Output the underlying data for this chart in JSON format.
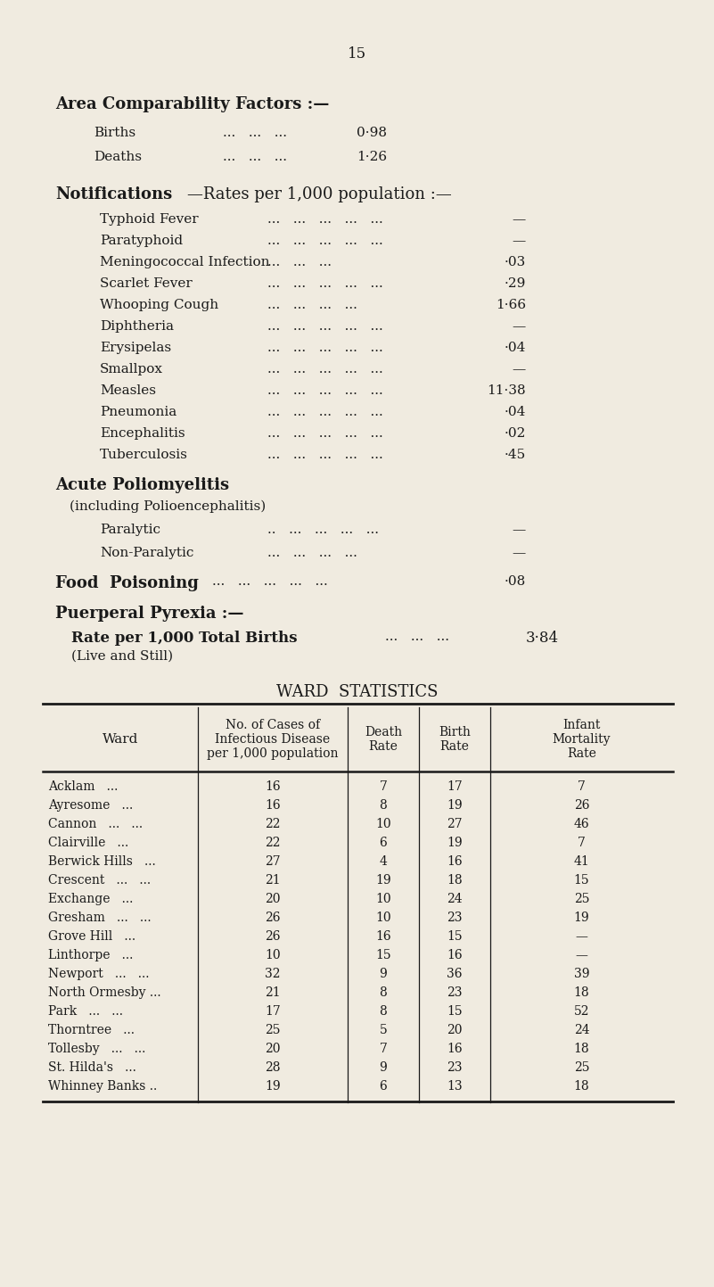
{
  "page_number": "15",
  "background_color": "#f0ebe0",
  "text_color": "#1a1a1a",
  "section1_title": "Area Comparability Factors :—",
  "births_label": "Births",
  "births_dots": "...   ...   ...",
  "births_value": "0·98",
  "deaths_label": "Deaths",
  "deaths_dots": "...   ...   ...",
  "deaths_value": "1·26",
  "section2_title_bold": "Notifications",
  "section2_title_normal": "—Rates per 1,000 population :—",
  "section2_items": [
    {
      "label": "Typhoid Fever",
      "dots": "...   ...   ...   ...   ...",
      "value": "—"
    },
    {
      "label": "Paratyphoid",
      "dots": "...   ...   ...   ...   ...",
      "value": "—"
    },
    {
      "label": "Meningococcal Infection",
      "dots": "...   ...   ...",
      "value": "·03"
    },
    {
      "label": "Scarlet Fever",
      "dots": "...   ...   ...   ...   ...",
      "value": "·29"
    },
    {
      "label": "Whooping Cough",
      "dots": "...   ...   ...   ...",
      "value": "1·66"
    },
    {
      "label": "Diphtheria",
      "dots": "...   ...   ...   ...   ...",
      "value": "—"
    },
    {
      "label": "Erysipelas",
      "dots": "...   ...   ...   ...   ...",
      "value": "·04"
    },
    {
      "label": "Smallpox",
      "dots": "...   ...   ...   ...   ...",
      "value": "—"
    },
    {
      "label": "Measles",
      "dots": "...   ...   ...   ...   ...",
      "value": "11·38"
    },
    {
      "label": "Pneumonia",
      "dots": "...   ...   ...   ...   ...",
      "value": "·04"
    },
    {
      "label": "Encephalitis",
      "dots": "...   ...   ...   ...   ...",
      "value": "·02"
    },
    {
      "label": "Tuberculosis",
      "dots": "...   ...   ...   ...   ...",
      "value": "·45"
    }
  ],
  "section3_title": "Acute Poliomyelitis",
  "section3_subtitle": "(including Polioencephalitis)",
  "section3_items": [
    {
      "label": "Paralytic",
      "dots": "..   ...   ...   ...   ...",
      "value": "—"
    },
    {
      "label": "Non-Paralytic",
      "dots": "...   ...   ...   ...",
      "value": "—"
    }
  ],
  "section4_title": "Food  Poisoning",
  "section4_dots": "...   ...   ...   ...   ...",
  "section4_value": "·08",
  "section5_title": "Puerperal Pyrexia :—",
  "section5_subtitle": "Rate per 1,000 Total Births",
  "section5_dots": "...   ...   ...",
  "section5_value": "3·84",
  "section5_note": "(Live and Still)",
  "table_title": "WARD  STATISTICS",
  "table_col_headers": [
    "Ward",
    "No. of Cases of\nInfectious Disease\nper 1,000 population",
    "Death\nRate",
    "Birth\nRate",
    "Infant\nMortality\nRate"
  ],
  "table_data": [
    [
      "Acklam   ...",
      "16",
      "7",
      "17",
      "7"
    ],
    [
      "Ayresome   ...",
      "16",
      "8",
      "19",
      "26"
    ],
    [
      "Cannon   ...   ...",
      "22",
      "10",
      "27",
      "46"
    ],
    [
      "Clairville   ...",
      "22",
      "6",
      "19",
      "7"
    ],
    [
      "Berwick Hills   ...",
      "27",
      "4",
      "16",
      "41"
    ],
    [
      "Crescent   ...   ...",
      "21",
      "19",
      "18",
      "15"
    ],
    [
      "Exchange   ...",
      "20",
      "10",
      "24",
      "25"
    ],
    [
      "Gresham   ...   ...",
      "26",
      "10",
      "23",
      "19"
    ],
    [
      "Grove Hill   ...",
      "26",
      "16",
      "15",
      "—"
    ],
    [
      "Linthorpe   ...",
      "10",
      "15",
      "16",
      "—"
    ],
    [
      "Newport   ...   ...",
      "32",
      "9",
      "36",
      "39"
    ],
    [
      "North Ormesby ...",
      "21",
      "8",
      "23",
      "18"
    ],
    [
      "Park   ...   ...",
      "17",
      "8",
      "15",
      "52"
    ],
    [
      "Thorntree   ...",
      "25",
      "5",
      "20",
      "24"
    ],
    [
      "Tollesby   ...   ...",
      "20",
      "7",
      "16",
      "18"
    ],
    [
      "St. Hilda's   ...",
      "28",
      "9",
      "23",
      "25"
    ],
    [
      "Whinney Banks ..",
      "19",
      "6",
      "13",
      "18"
    ]
  ]
}
